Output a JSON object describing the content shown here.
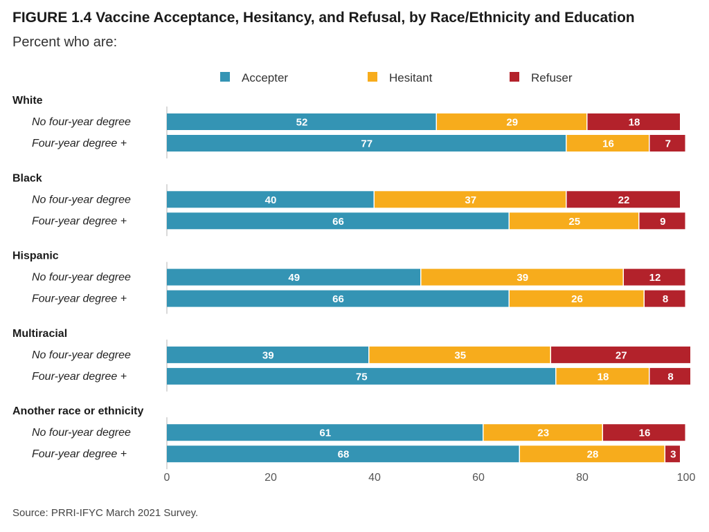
{
  "figure": {
    "title": "FIGURE 1.4  Vaccine Acceptance, Hesitancy, and Refusal, by Race/Ethnicity and Education",
    "subtitle": "Percent who are:",
    "source": "Source: PRRI-IFYC March 2021 Survey."
  },
  "chart_data": {
    "type": "bar",
    "orientation": "horizontal",
    "stacked": true,
    "xlim": [
      0,
      100
    ],
    "xticks": [
      0,
      20,
      40,
      60,
      80,
      100
    ],
    "grid": false,
    "legend_position": "top",
    "series": [
      {
        "name": "Accepter",
        "color": "#3494b4"
      },
      {
        "name": "Hesitant",
        "color": "#f7ac1c"
      },
      {
        "name": "Refuser",
        "color": "#b3222b"
      }
    ],
    "groups": [
      {
        "name": "White",
        "rows": [
          {
            "label": "No four-year degree",
            "values": [
              52,
              29,
              18
            ]
          },
          {
            "label": "Four-year degree +",
            "values": [
              77,
              16,
              7
            ]
          }
        ]
      },
      {
        "name": "Black",
        "rows": [
          {
            "label": "No four-year degree",
            "values": [
              40,
              37,
              22
            ]
          },
          {
            "label": "Four-year degree +",
            "values": [
              66,
              25,
              9
            ]
          }
        ]
      },
      {
        "name": "Hispanic",
        "rows": [
          {
            "label": "No four-year degree",
            "values": [
              49,
              39,
              12
            ]
          },
          {
            "label": "Four-year degree +",
            "values": [
              66,
              26,
              8
            ]
          }
        ]
      },
      {
        "name": "Multiracial",
        "rows": [
          {
            "label": "No four-year degree",
            "values": [
              39,
              35,
              27
            ]
          },
          {
            "label": "Four-year degree +",
            "values": [
              75,
              18,
              8
            ]
          }
        ]
      },
      {
        "name": "Another race or ethnicity",
        "rows": [
          {
            "label": "No four-year degree",
            "values": [
              61,
              23,
              16
            ]
          },
          {
            "label": "Four-year degree +",
            "values": [
              68,
              28,
              3
            ]
          }
        ]
      }
    ]
  }
}
